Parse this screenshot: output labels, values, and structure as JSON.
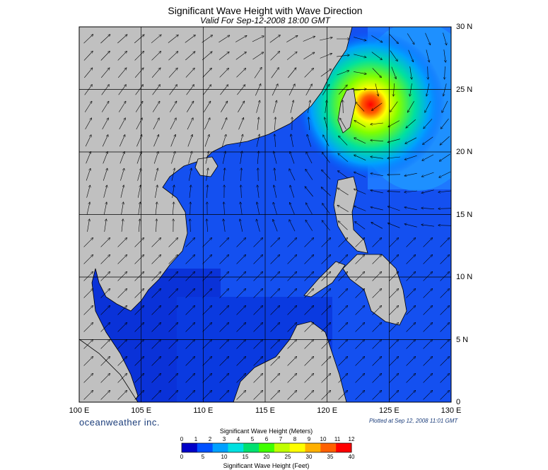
{
  "header": {
    "title": "Significant Wave Height with Wave Direction",
    "subtitle": "Valid For Sep-12-2008 18:00 GMT"
  },
  "map": {
    "lon_range": [
      100,
      130
    ],
    "lat_range": [
      0,
      30
    ],
    "lon_labels": [
      "100 E",
      "105 E",
      "110 E",
      "115 E",
      "120 E",
      "125 E",
      "130 E"
    ],
    "lat_labels": [
      "30 N",
      "25 N",
      "20 N",
      "15 N",
      "10 N",
      "5 N",
      "0"
    ],
    "storm_center": {
      "lon": 123.0,
      "lat": 24.3
    },
    "land_color": "#c0c0c0",
    "grid_color": "#000000"
  },
  "footer": {
    "brand": "oceanweather inc.",
    "plotted": "Plotted at Sep 12, 2008 11:01 GMT"
  },
  "colorbar": {
    "title_meters": "Significant Wave Height (Meters)",
    "title_feet": "Significant Wave Height (Feet)",
    "meters_ticks": [
      "0",
      "1",
      "2",
      "3",
      "4",
      "5",
      "6",
      "7",
      "8",
      "9",
      "10",
      "11",
      "12"
    ],
    "feet_ticks": [
      "0",
      "5",
      "10",
      "15",
      "20",
      "25",
      "30",
      "35",
      "40"
    ],
    "colors": [
      "#0000c8",
      "#0050ff",
      "#00a0ff",
      "#00e0e0",
      "#00e070",
      "#40ff00",
      "#c0ff00",
      "#ffff00",
      "#ffb000",
      "#ff6000",
      "#ff0000"
    ]
  }
}
